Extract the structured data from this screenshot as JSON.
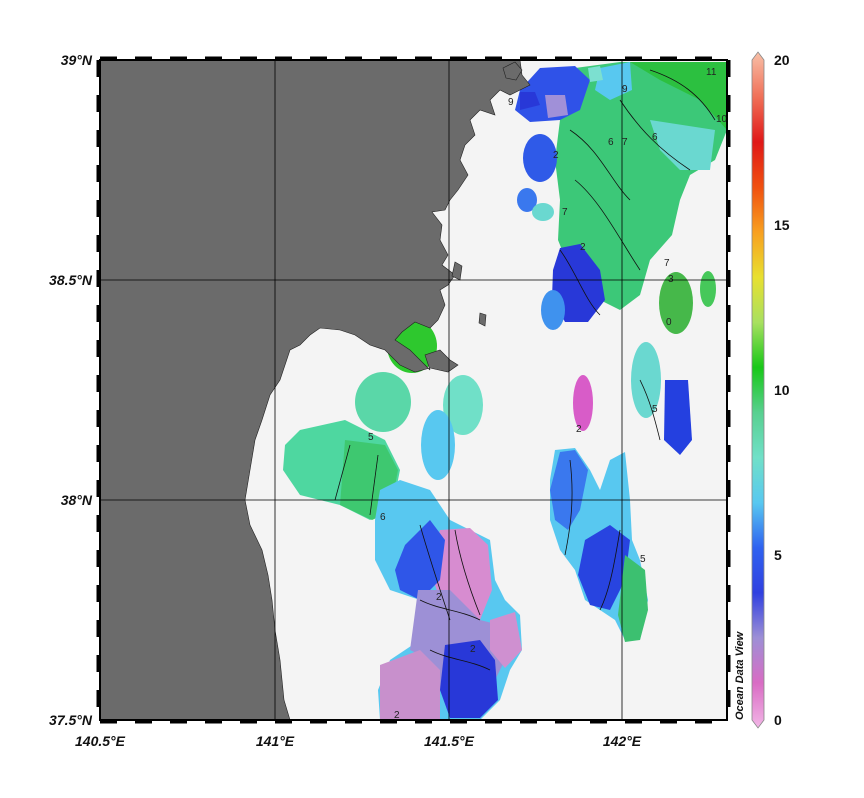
{
  "map": {
    "lon_labels": [
      "140.5°E",
      "141°E",
      "141.5°E",
      "142°E"
    ],
    "lat_labels": [
      "39°N",
      "38.5°N",
      "38°N",
      "37.5°N"
    ],
    "credit": "Ocean Data View"
  },
  "colorbar": {
    "labels": [
      "20",
      "15",
      "10",
      "5",
      "0"
    ],
    "stops": [
      "#f2b6e6",
      "#d96cc4",
      "#9d8fd6",
      "#3040e0",
      "#2f62f0",
      "#58c8f0",
      "#70e0c8",
      "#58d090",
      "#18c818",
      "#a8e060",
      "#e8e030",
      "#f8a020",
      "#f05010",
      "#e01818",
      "#f07058",
      "#f8c0a8"
    ]
  },
  "contour_labels": [
    "11",
    "10",
    "9",
    "9",
    "6",
    "7",
    "6",
    "7",
    "2",
    "2",
    "7",
    "3",
    "0",
    "5",
    "5",
    "2",
    "6",
    "5",
    "2",
    "2",
    "2"
  ],
  "colors": {
    "land": "#6b6b6b",
    "sea": "#f4f4f4",
    "frame": "#000000"
  }
}
